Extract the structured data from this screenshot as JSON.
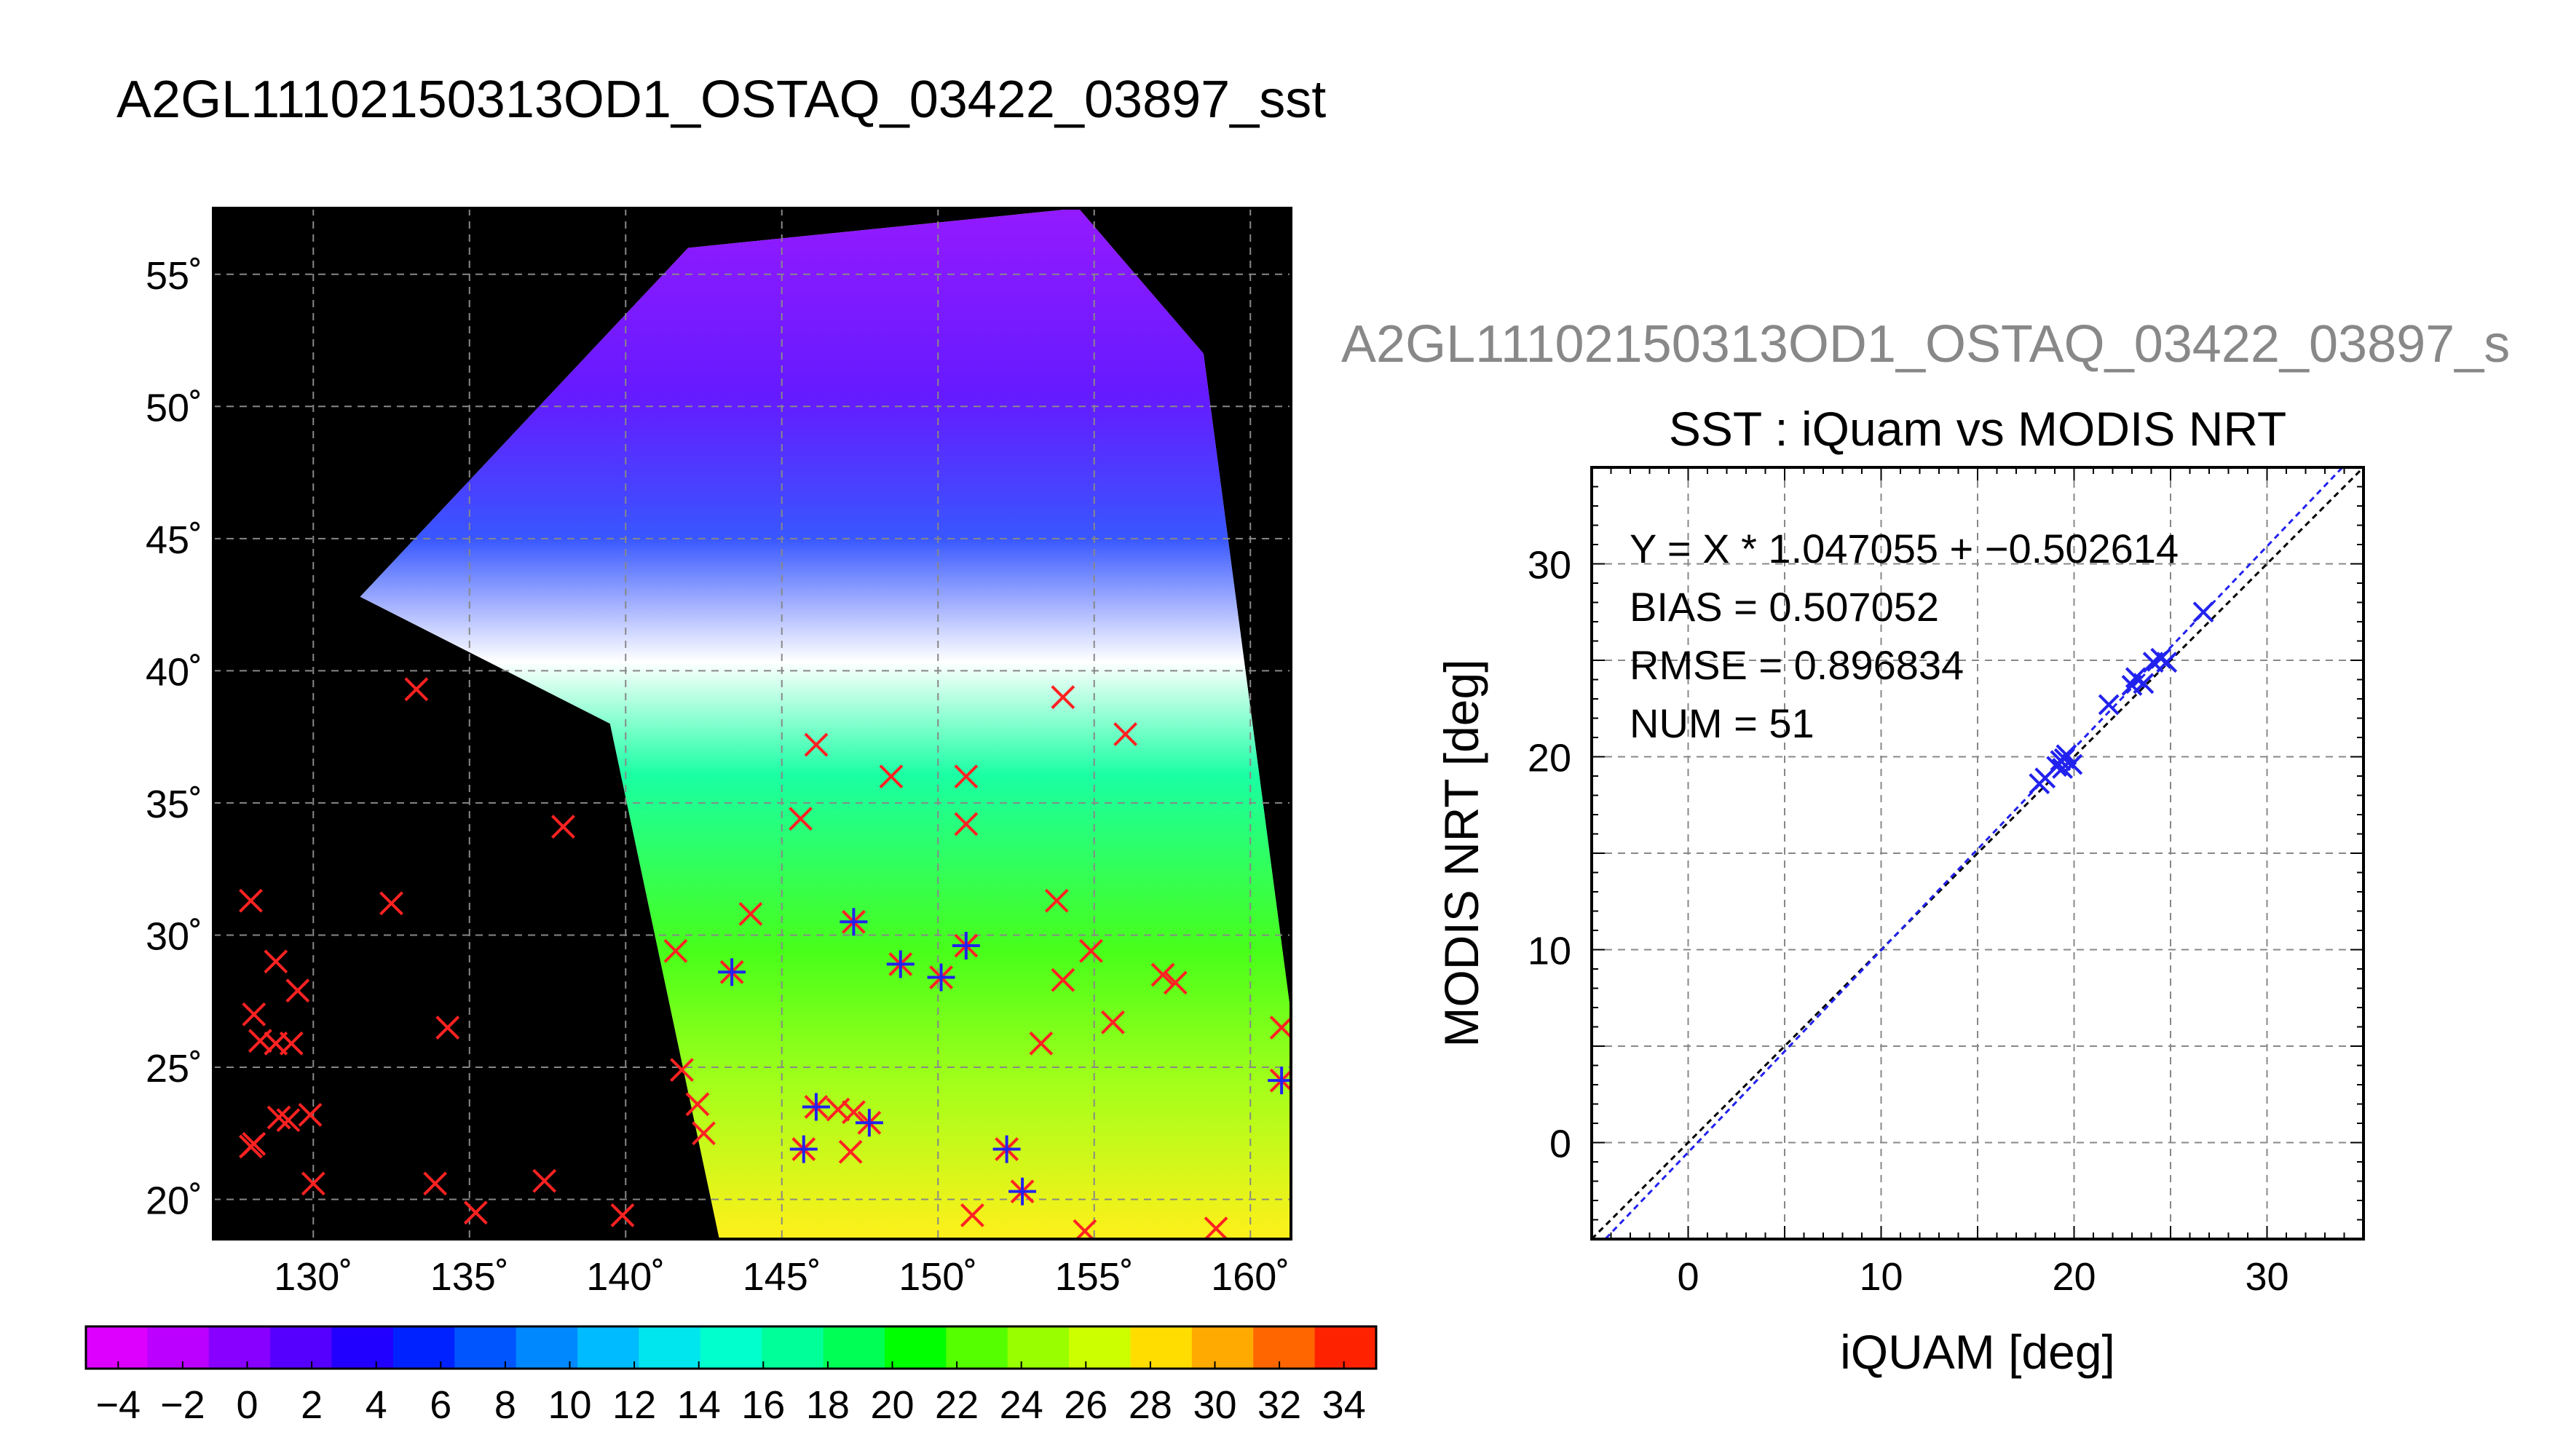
{
  "title": "A2GL11102150313OD1_OSTAQ_03422_03897_sst",
  "scatter_header": "A2GL11102150313OD1_OSTAQ_03422_03897_s",
  "colors": {
    "iquam_marker": "#ff2222",
    "match_marker": "#2222ee",
    "land_background": "#000000",
    "no_data": "#ffffff",
    "grid": "#888888"
  },
  "chart_data": [
    {
      "type": "heatmap",
      "title": "A2GL11102150313OD1_OSTAQ_03422_03897_sst",
      "xlabel": "",
      "ylabel": "",
      "xlim": [
        126.8,
        161.3
      ],
      "ylim": [
        18.5,
        57.5
      ],
      "x_ticks": [
        130,
        135,
        140,
        145,
        150,
        155,
        160
      ],
      "y_ticks": [
        20,
        25,
        30,
        35,
        40,
        45,
        50,
        55
      ],
      "x_tick_labels": [
        "130˚",
        "135˚",
        "140˚",
        "145˚",
        "150˚",
        "155˚",
        "160˚"
      ],
      "y_tick_labels": [
        "20˚",
        "25˚",
        "30˚",
        "35˚",
        "40˚",
        "45˚",
        "50˚",
        "55˚"
      ],
      "grid": true,
      "colorbar": {
        "min": -5,
        "max": 35,
        "step": 2,
        "tick_values": [
          -4,
          -2,
          0,
          2,
          4,
          6,
          8,
          10,
          12,
          14,
          16,
          18,
          20,
          22,
          24,
          26,
          28,
          30,
          32,
          34
        ],
        "tick_labels": [
          "−4",
          "−2",
          "0",
          "2",
          "4",
          "6",
          "8",
          "10",
          "12",
          "14",
          "16",
          "18",
          "20",
          "22",
          "24",
          "26",
          "28",
          "30",
          "32",
          "34"
        ],
        "colors": [
          "#dd00ff",
          "#bb00ff",
          "#8800ff",
          "#5500ff",
          "#2200ff",
          "#0022ff",
          "#0055ff",
          "#0088ff",
          "#00bbff",
          "#00e6ee",
          "#00ffcc",
          "#00ff99",
          "#00ff55",
          "#00ff00",
          "#55ff00",
          "#99ff00",
          "#ccff00",
          "#ffdd00",
          "#ffaa00",
          "#ff6600",
          "#ff2200"
        ]
      },
      "swath": {
        "lon_lat": [
          [
            131.5,
            42.8
          ],
          [
            142.0,
            56.0
          ],
          [
            154.5,
            57.5
          ],
          [
            158.5,
            52.0
          ],
          [
            161.3,
            27.0
          ],
          [
            161.3,
            18.5
          ],
          [
            143.0,
            18.5
          ],
          [
            139.5,
            38.0
          ]
        ]
      },
      "iquam_points": [
        [
          128.0,
          31.3
        ],
        [
          128.8,
          29.0
        ],
        [
          129.5,
          27.9
        ],
        [
          128.1,
          27.0
        ],
        [
          128.3,
          26.0
        ],
        [
          128.8,
          25.9
        ],
        [
          129.3,
          25.9
        ],
        [
          128.9,
          23.1
        ],
        [
          129.2,
          23.0
        ],
        [
          129.9,
          23.2
        ],
        [
          128.1,
          22.1
        ],
        [
          128.0,
          22.0
        ],
        [
          130.0,
          20.6
        ],
        [
          132.5,
          31.2
        ],
        [
          133.3,
          39.3
        ],
        [
          134.3,
          26.5
        ],
        [
          133.9,
          20.6
        ],
        [
          135.2,
          19.5
        ],
        [
          137.4,
          20.7
        ],
        [
          138.0,
          34.1
        ],
        [
          139.9,
          19.4
        ],
        [
          141.6,
          29.4
        ],
        [
          141.8,
          24.9
        ],
        [
          142.3,
          23.6
        ],
        [
          142.5,
          22.5
        ],
        [
          144.0,
          30.8
        ],
        [
          145.6,
          34.4
        ],
        [
          146.1,
          37.2
        ],
        [
          146.8,
          23.4
        ],
        [
          147.2,
          21.8
        ],
        [
          147.3,
          23.3
        ],
        [
          148.5,
          36.0
        ],
        [
          150.9,
          36.0
        ],
        [
          150.9,
          34.2
        ],
        [
          151.1,
          19.4
        ],
        [
          153.3,
          25.9
        ],
        [
          153.8,
          31.3
        ],
        [
          154.0,
          28.3
        ],
        [
          154.0,
          39.0
        ],
        [
          154.9,
          29.4
        ],
        [
          154.7,
          18.8
        ],
        [
          155.6,
          26.7
        ],
        [
          156.0,
          37.6
        ],
        [
          157.2,
          28.5
        ],
        [
          157.6,
          28.2
        ],
        [
          158.9,
          18.9
        ],
        [
          161.0,
          26.5
        ]
      ],
      "match_points": [
        [
          143.4,
          28.6
        ],
        [
          145.7,
          21.9
        ],
        [
          146.1,
          23.5
        ],
        [
          147.3,
          30.5
        ],
        [
          147.8,
          22.9
        ],
        [
          148.8,
          28.9
        ],
        [
          150.1,
          28.4
        ],
        [
          150.9,
          29.6
        ],
        [
          152.2,
          21.9
        ],
        [
          152.7,
          20.3
        ],
        [
          161.0,
          24.5
        ]
      ]
    },
    {
      "type": "scatter",
      "title": "SST : iQuam vs MODIS NRT",
      "xlabel": "iQUAM [deg]",
      "ylabel": "MODIS NRT [deg]",
      "xlim": [
        -5,
        35
      ],
      "ylim": [
        -5,
        35
      ],
      "x_ticks": [
        0,
        10,
        20,
        30
      ],
      "y_ticks": [
        0,
        10,
        20,
        30
      ],
      "grid": true,
      "stats": [
        "Y = X * 1.047055 + −0.502614",
        "BIAS = 0.507052",
        "RMSE = 0.896834",
        "NUM = 51"
      ],
      "fit": {
        "slope": 1.047055,
        "intercept": -0.502614
      },
      "reference_line": {
        "slope": 1,
        "intercept": 0
      },
      "points": [
        [
          18.2,
          18.6
        ],
        [
          18.5,
          18.9
        ],
        [
          19.1,
          19.5
        ],
        [
          19.3,
          19.8
        ],
        [
          19.5,
          19.9
        ],
        [
          19.6,
          20.1
        ],
        [
          19.9,
          19.6
        ],
        [
          19.4,
          19.4
        ],
        [
          21.8,
          22.7
        ],
        [
          23.0,
          23.7
        ],
        [
          23.2,
          24.1
        ],
        [
          23.6,
          23.8
        ],
        [
          24.1,
          24.9
        ],
        [
          24.5,
          25.1
        ],
        [
          24.8,
          24.9
        ],
        [
          26.7,
          27.5
        ]
      ]
    }
  ]
}
